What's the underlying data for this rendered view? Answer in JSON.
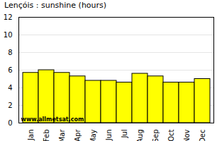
{
  "chart_data": {
    "type": "bar",
    "title": "Lençóis : sunshine (hours)",
    "categories": [
      "Jan",
      "Feb",
      "Mar",
      "Apr",
      "May",
      "Jun",
      "Jul",
      "Aug",
      "Sep",
      "Oct",
      "Nov",
      "Dec"
    ],
    "values": [
      5.7,
      6.0,
      5.7,
      5.3,
      4.8,
      4.8,
      4.6,
      5.6,
      5.3,
      4.6,
      4.6,
      5.0
    ],
    "color": "#ffff00",
    "ylim": [
      0,
      12
    ],
    "yticks": [
      0,
      2,
      4,
      6,
      8,
      10,
      12
    ],
    "grid": true,
    "annotation": "www.allmetsat.com"
  }
}
